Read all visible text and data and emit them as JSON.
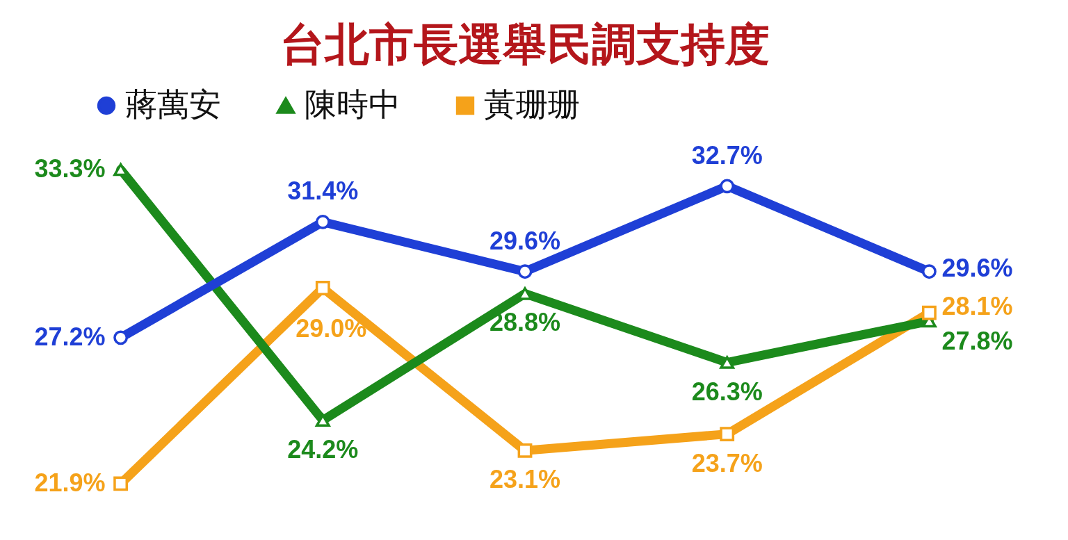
{
  "chart_data": {
    "type": "line",
    "title": "台北市長選舉民調支持度",
    "categories": [
      null,
      null,
      null,
      null,
      null
    ],
    "legend": "top",
    "line_style": "solid",
    "series": [
      {
        "name": "蔣萬安",
        "color": "#1f3fd6",
        "marker": "circle",
        "values": [
          27.2,
          31.4,
          29.6,
          32.7,
          29.6
        ],
        "value_labels": [
          "27.2%",
          "31.4%",
          "29.6%",
          "32.7%",
          "29.6%"
        ]
      },
      {
        "name": "陳時中",
        "color": "#1c8a1c",
        "marker": "triangle",
        "values": [
          33.3,
          24.2,
          28.8,
          26.3,
          27.8
        ],
        "value_labels": [
          "33.3%",
          "24.2%",
          "28.8%",
          "26.3%",
          "27.8%"
        ]
      },
      {
        "name": "黃珊珊",
        "color": "#f5a21a",
        "marker": "square",
        "values": [
          21.9,
          29.0,
          23.1,
          23.7,
          28.1
        ],
        "value_labels": [
          "21.9%",
          "29.0%",
          "23.1%",
          "23.7%",
          "28.1%"
        ]
      }
    ]
  }
}
